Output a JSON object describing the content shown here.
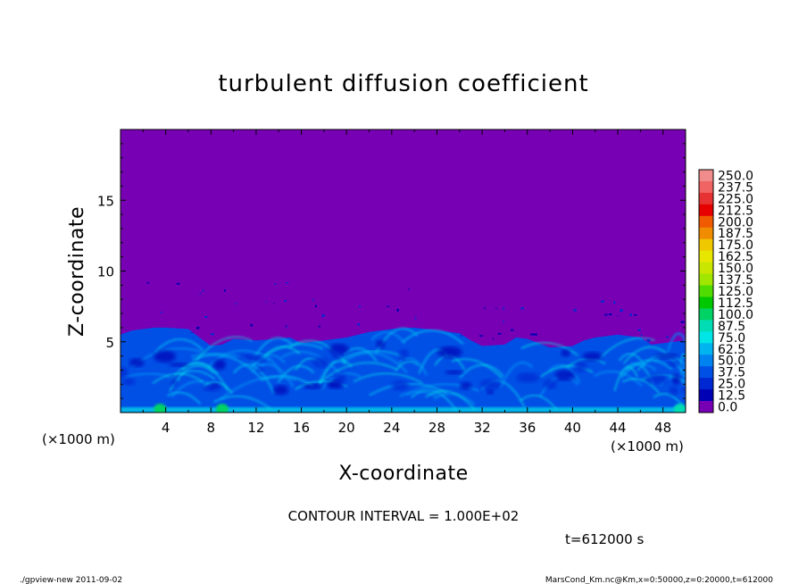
{
  "chart_data": {
    "type": "heatmap",
    "title": "turbulent diffusion coefficient",
    "xlabel": "X-coordinate",
    "ylabel": "Z-coordinate",
    "x_unit": "(×1000 m)",
    "y_unit": "(×1000 m)",
    "xlim": [
      0,
      50
    ],
    "ylim": [
      0,
      20
    ],
    "x_ticks": [
      "4",
      "8",
      "12",
      "16",
      "20",
      "24",
      "28",
      "32",
      "36",
      "40",
      "44",
      "48"
    ],
    "y_ticks": [
      "5",
      "10",
      "15"
    ],
    "colorbar_labels": [
      "250.0",
      "237.5",
      "225.0",
      "212.5",
      "200.0",
      "187.5",
      "175.0",
      "162.5",
      "150.0",
      "137.5",
      "125.0",
      "112.5",
      "100.0",
      "87.5",
      "75.0",
      "62.5",
      "50.0",
      "37.5",
      "25.0",
      "12.5",
      "0.0"
    ],
    "colorbar_colors": [
      "#f08c8c",
      "#f06464",
      "#e63232",
      "#e60000",
      "#f05a00",
      "#f08c00",
      "#f0c800",
      "#e6e600",
      "#c8e600",
      "#a0e600",
      "#50dc00",
      "#00c800",
      "#00d264",
      "#00dcb4",
      "#00e6e6",
      "#00b4f0",
      "#0082f0",
      "#0050e6",
      "#0028d2",
      "#0000b4",
      "#7800b4"
    ],
    "background_value": 0.0,
    "boundary_layer_top": [
      [
        0,
        5.5
      ],
      [
        1,
        5.8
      ],
      [
        2,
        5.9
      ],
      [
        3,
        6.0
      ],
      [
        4,
        6.0
      ],
      [
        6,
        5.9
      ],
      [
        7,
        5.3
      ],
      [
        8,
        4.7
      ],
      [
        9,
        4.8
      ],
      [
        10,
        5.2
      ],
      [
        12,
        5.1
      ],
      [
        14,
        5.2
      ],
      [
        15,
        5.3
      ],
      [
        16,
        4.9
      ],
      [
        18,
        5.1
      ],
      [
        20,
        5.3
      ],
      [
        22,
        5.7
      ],
      [
        24,
        5.9
      ],
      [
        26,
        6.0
      ],
      [
        27,
        5.9
      ],
      [
        28,
        5.8
      ],
      [
        30,
        5.6
      ],
      [
        31,
        5.1
      ],
      [
        32,
        4.7
      ],
      [
        34,
        4.8
      ],
      [
        35,
        5.3
      ],
      [
        36,
        5.2
      ],
      [
        38,
        4.6
      ],
      [
        40,
        4.7
      ],
      [
        41,
        5.1
      ],
      [
        42,
        5.3
      ],
      [
        43,
        5.4
      ],
      [
        44,
        5.5
      ],
      [
        46,
        5.3
      ],
      [
        47,
        4.8
      ],
      [
        48,
        4.9
      ],
      [
        50,
        5.1
      ]
    ],
    "contour_interval": "CONTOUR INTERVAL = 1.000E+02",
    "time_label": "t=612000 s"
  },
  "footer": {
    "left": "./gpview-new   2011-09-02",
    "right": "MarsCond_Km.nc@Km,x=0:50000,z=0:20000,t=612000"
  }
}
